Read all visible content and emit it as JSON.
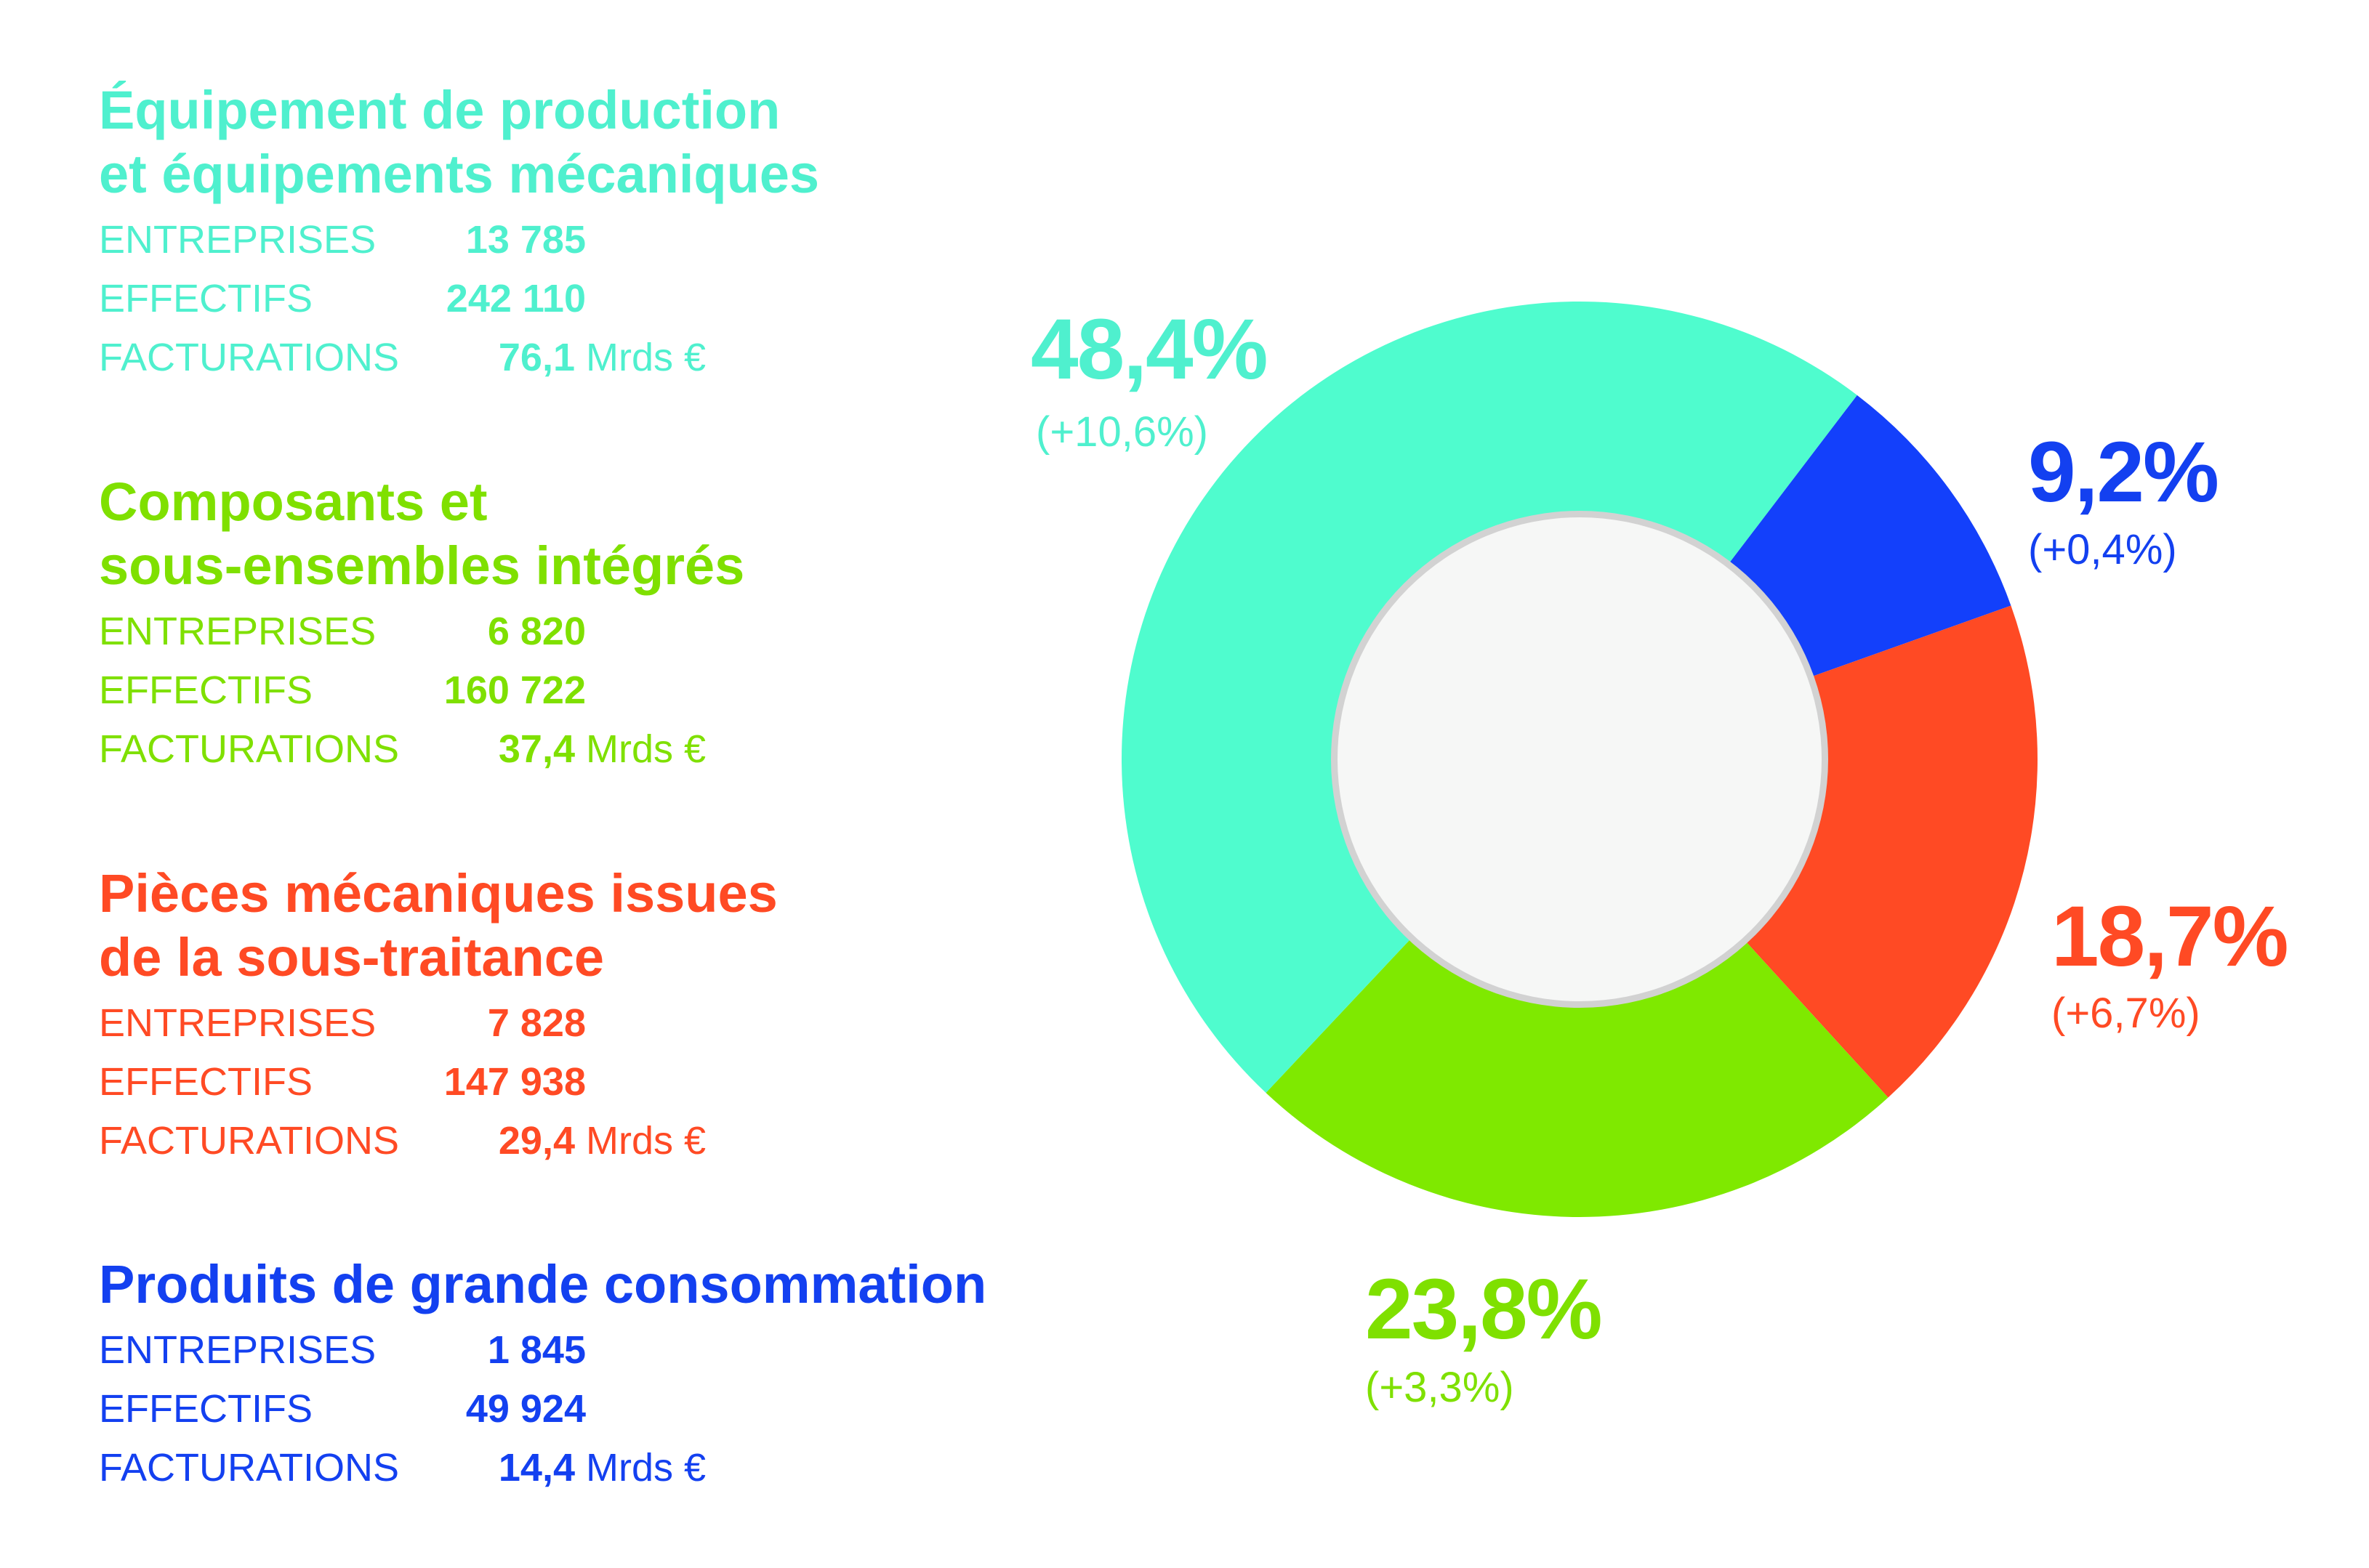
{
  "colors": {
    "turquoise": "#4FFCCE",
    "green": "#7FE900",
    "orange": "#FF4A24",
    "blue": "#1340FB",
    "hole": "#F6F7F6",
    "hole_ring": "#D2D2D2"
  },
  "sectors": [
    {
      "id": "equipement",
      "title_lines": [
        "Équipement de production",
        "et équipements mécaniques"
      ],
      "color": "#4FF0CE",
      "entreprises_label": "ENTREPRISES",
      "entreprises": "13 785",
      "effectifs_label": "EFFECTIFS",
      "effectifs": "242 110",
      "facturations_label": "FACTURATIONS",
      "facturations": "76,1",
      "facturations_unit": "Mrds €"
    },
    {
      "id": "composants",
      "title_lines": [
        "Composants et",
        "sous-ensembles intégrés"
      ],
      "color": "#7FE000",
      "entreprises_label": "ENTREPRISES",
      "entreprises": "6 820",
      "effectifs_label": "EFFECTIFS",
      "effectifs": "160 722",
      "facturations_label": "FACTURATIONS",
      "facturations": "37,4",
      "facturations_unit": "Mrds €"
    },
    {
      "id": "pieces",
      "title_lines": [
        "Pièces mécaniques issues",
        "de la sous-traitance"
      ],
      "color": "#FF4A24",
      "entreprises_label": "ENTREPRISES",
      "entreprises": "7 828",
      "effectifs_label": "EFFECTIFS",
      "effectifs": "147 938",
      "facturations_label": "FACTURATIONS",
      "facturations": "29,4",
      "facturations_unit": "Mrds €"
    },
    {
      "id": "produits",
      "title_lines": [
        "Produits de grande consommation"
      ],
      "color": "#1340F0",
      "entreprises_label": "ENTREPRISES",
      "entreprises": "1 845",
      "effectifs_label": "EFFECTIFS",
      "effectifs": "49 924",
      "facturations_label": "FACTURATIONS",
      "facturations": "14,4",
      "facturations_unit": "Mrds €"
    }
  ],
  "chart_data": {
    "type": "pie",
    "donut": true,
    "categories": [
      "Équipement de production et équipements mécaniques",
      "Produits de grande consommation",
      "Pièces mécaniques issues de la sous-traitance",
      "Composants et sous-ensembles intégrés"
    ],
    "values": [
      48.4,
      9.2,
      18.7,
      23.8
    ],
    "colors": [
      "#4FFCCE",
      "#1340FB",
      "#FF4A24",
      "#7FE900"
    ],
    "labels": [
      "48,4%",
      "9,2%",
      "18,7%",
      "23,8%"
    ],
    "changes": [
      "(+10,6%)",
      "(+0,4%)",
      "(+6,7%)",
      "(+3,3%)"
    ],
    "legend": "left"
  }
}
